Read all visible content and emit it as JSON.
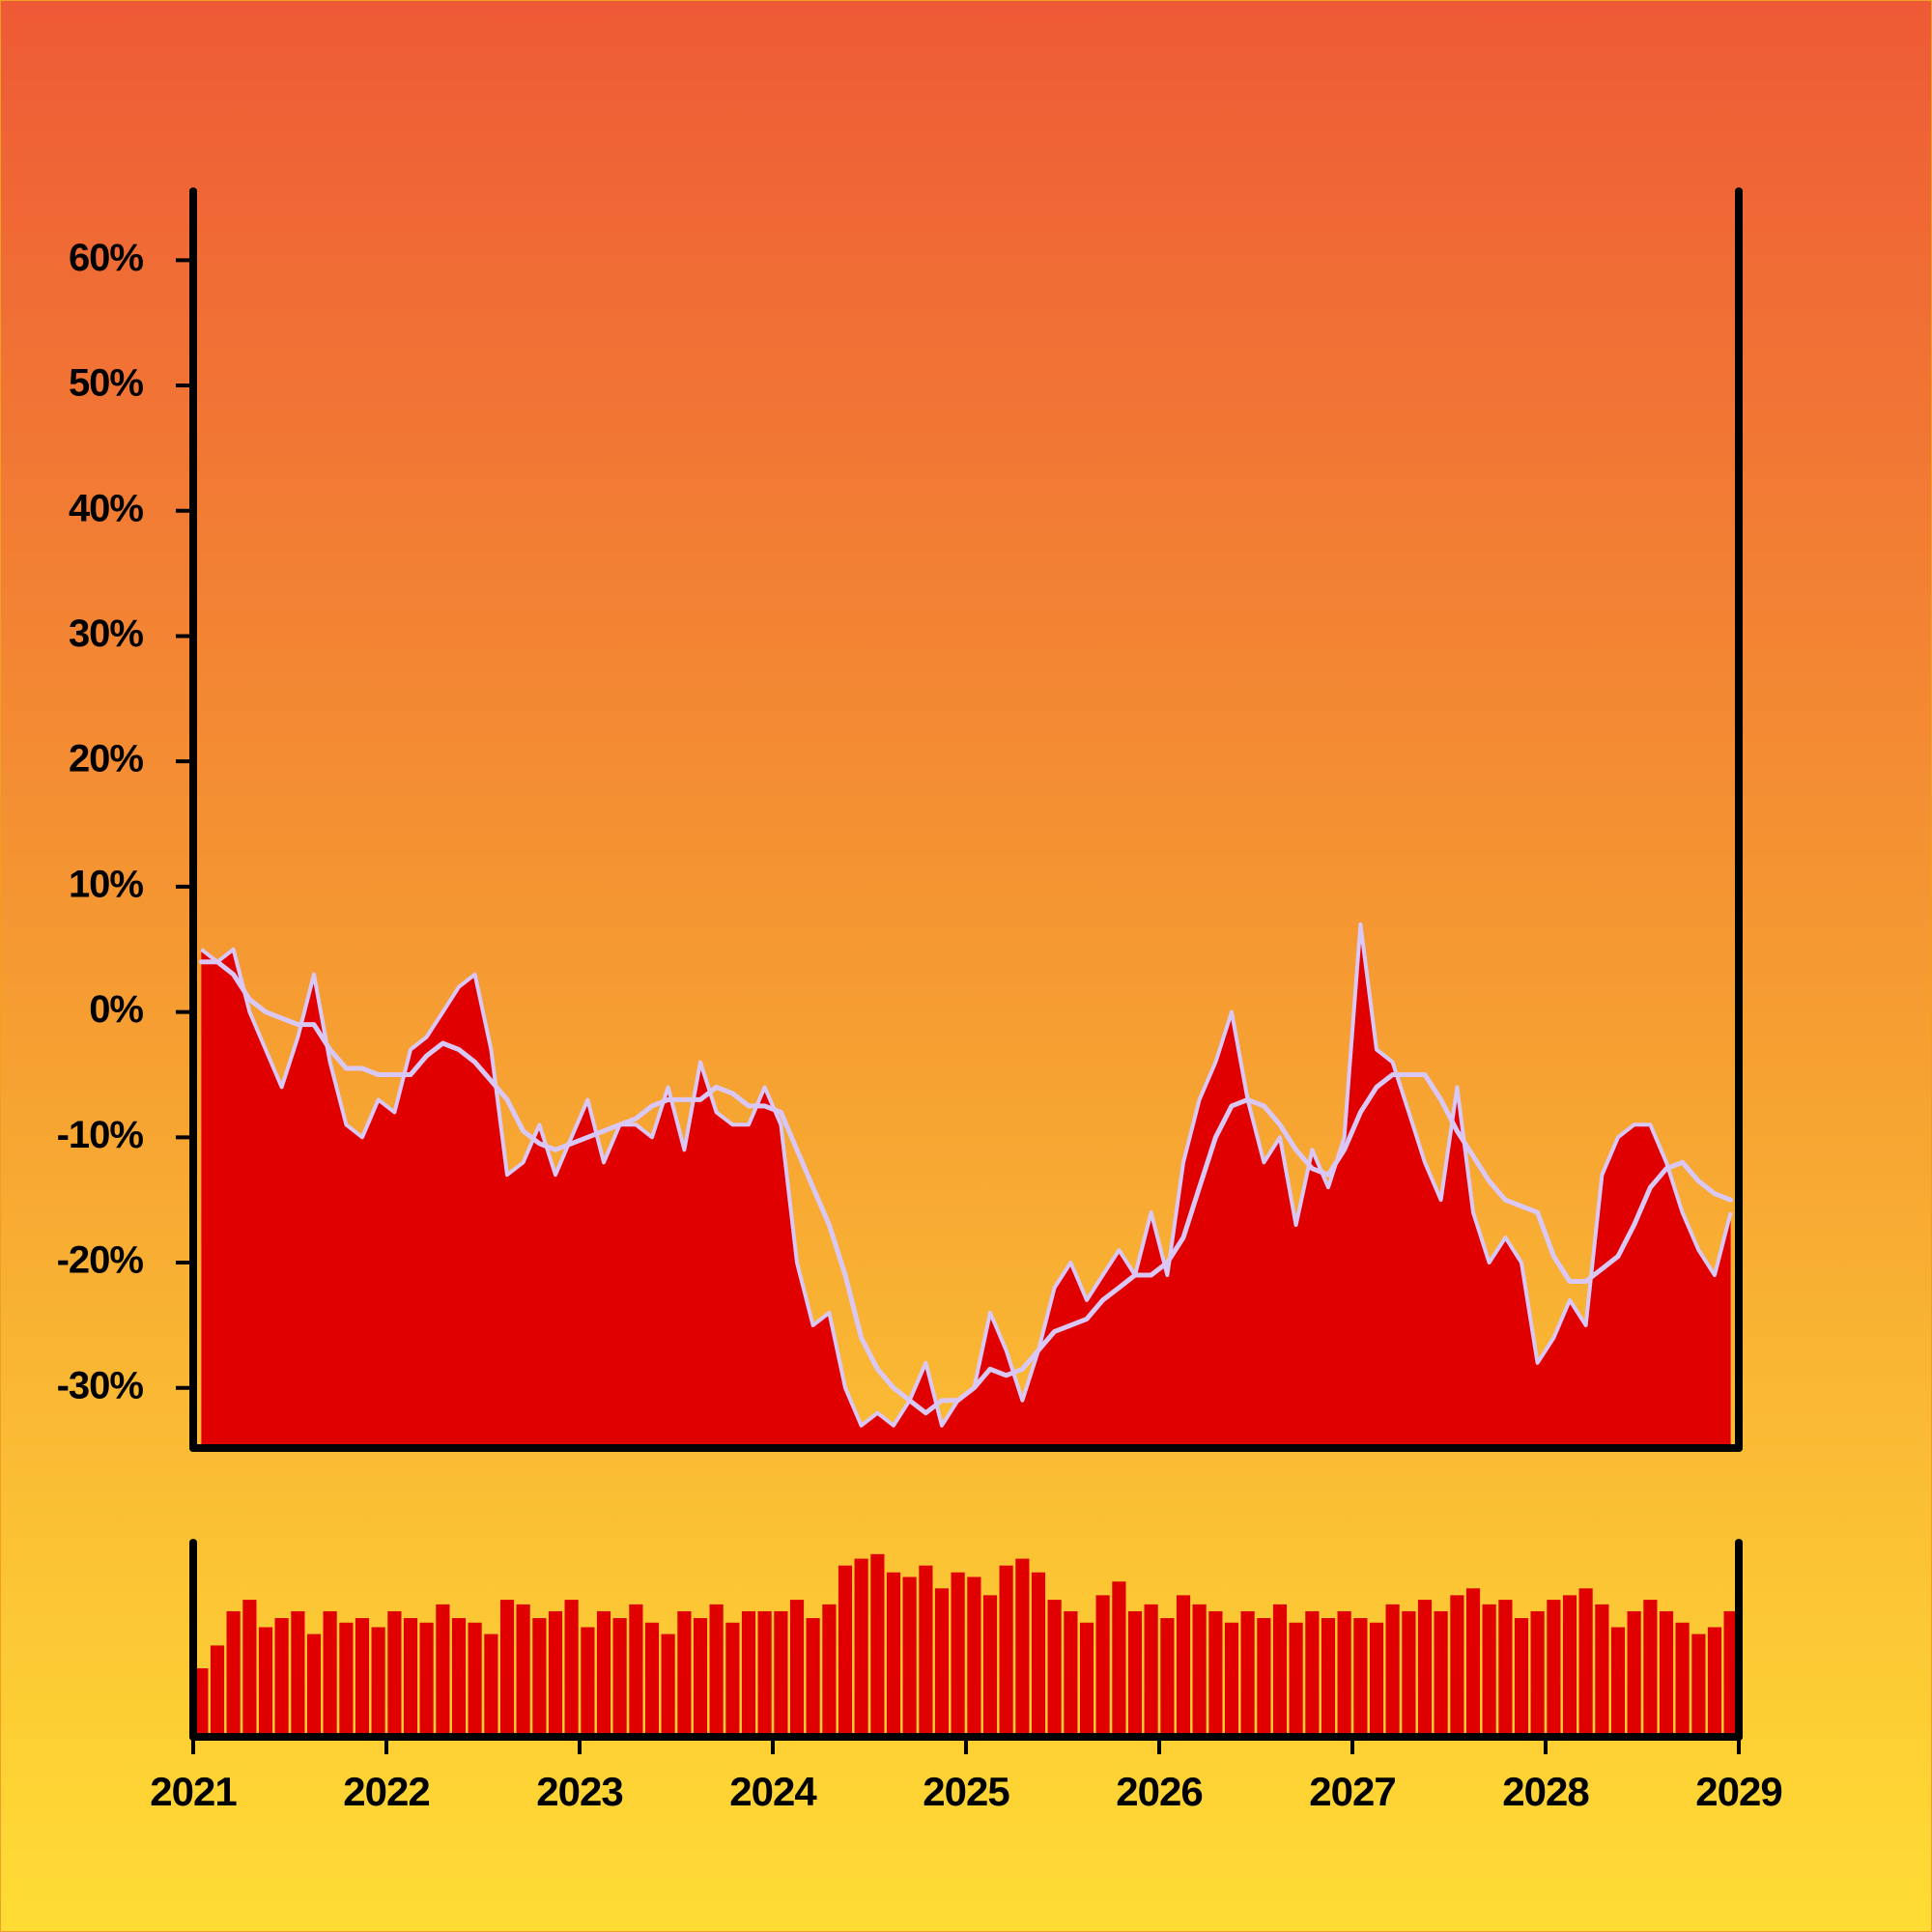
{
  "chart_data": [
    {
      "type": "area",
      "x": [
        2021.042,
        2021.125,
        2021.208,
        2021.292,
        2021.375,
        2021.458,
        2021.542,
        2021.625,
        2021.708,
        2021.792,
        2021.875,
        2021.958,
        2022.042,
        2022.125,
        2022.208,
        2022.292,
        2022.375,
        2022.458,
        2022.542,
        2022.625,
        2022.708,
        2022.792,
        2022.875,
        2022.958,
        2023.042,
        2023.125,
        2023.208,
        2023.292,
        2023.375,
        2023.458,
        2023.542,
        2023.625,
        2023.708,
        2023.792,
        2023.875,
        2023.958,
        2024.042,
        2024.125,
        2024.208,
        2024.292,
        2024.375,
        2024.458,
        2024.542,
        2024.625,
        2024.708,
        2024.792,
        2024.875,
        2024.958,
        2025.042,
        2025.125,
        2025.208,
        2025.292,
        2025.375,
        2025.458,
        2025.542,
        2025.625,
        2025.708,
        2025.792,
        2025.875,
        2025.958,
        2026.042,
        2026.125,
        2026.208,
        2026.292,
        2026.375,
        2026.458,
        2026.542,
        2026.625,
        2026.708,
        2026.792,
        2026.875,
        2026.958,
        2027.042,
        2027.125,
        2027.208,
        2027.292,
        2027.375,
        2027.458,
        2027.542,
        2027.625,
        2027.708,
        2027.792,
        2027.875,
        2027.958,
        2028.042,
        2028.125,
        2028.208,
        2028.292,
        2028.375,
        2028.458,
        2028.542,
        2028.625,
        2028.708,
        2028.792,
        2028.875,
        2028.958
      ],
      "series": [
        {
          "type": "area",
          "color": "#e00000",
          "line_color": "#d9c8f5",
          "values": [
            5,
            4,
            5,
            0,
            -3,
            -6,
            -2,
            3,
            -4,
            -9,
            -10,
            -7,
            -8,
            -3,
            -2,
            0,
            2,
            3,
            -3,
            -13,
            -12,
            -9,
            -13,
            -10,
            -7,
            -12,
            -9,
            -9,
            -10,
            -6,
            -11,
            -4,
            -8,
            -9,
            -9,
            -6,
            -9,
            -20,
            -25,
            -24,
            -30,
            -33,
            -32,
            -33,
            -31,
            -28,
            -33,
            -31,
            -30,
            -24,
            -27,
            -31,
            -27,
            -22,
            -20,
            -23,
            -21,
            -19,
            -21,
            -16,
            -21,
            -12,
            -7,
            -4,
            0,
            -7,
            -12,
            -10,
            -17,
            -11,
            -14,
            -10,
            7,
            -3,
            -4,
            -8,
            -12,
            -15,
            -6,
            -16,
            -20,
            -18,
            -20,
            -28,
            -26,
            -23,
            -25,
            -13,
            -10,
            -9,
            -9,
            -12,
            -16,
            -19,
            -21,
            -16
          ]
        },
        {
          "type": "line",
          "color": "#d9c8f5",
          "values": [
            4,
            4,
            3,
            1,
            0,
            -0.5,
            -1,
            -1,
            -3,
            -4.5,
            -4.5,
            -5,
            -5,
            -5,
            -3.5,
            -2.5,
            -3,
            -4,
            -5.5,
            -7,
            -9.5,
            -10.5,
            -11,
            -10.5,
            -10,
            -9.5,
            -9,
            -8.5,
            -7.5,
            -7,
            -7,
            -7,
            -6,
            -6.5,
            -7.5,
            -7.5,
            -8,
            -11,
            -14,
            -17,
            -21,
            -26,
            -28.5,
            -30,
            -31,
            -32,
            -31,
            -31,
            -30,
            -28.5,
            -29,
            -28.5,
            -27,
            -25.5,
            -25,
            -24.5,
            -23,
            -22,
            -21,
            -21,
            -20,
            -18,
            -14,
            -10,
            -7.5,
            -7,
            -7.5,
            -9,
            -11,
            -12.5,
            -13,
            -11,
            -8,
            -6,
            -5,
            -5,
            -5,
            -7,
            -9.5,
            -11.5,
            -13.5,
            -15,
            -15.5,
            -16,
            -19.5,
            -21.5,
            -21.5,
            -20.5,
            -19.5,
            -17,
            -14,
            -12.5,
            -12,
            -13.5,
            -14.5,
            -15
          ]
        }
      ],
      "xlim": [
        2021,
        2029
      ],
      "ylim": [
        -34.8,
        65.5
      ],
      "yticks": [
        {
          "value": -30,
          "label": "-30%"
        },
        {
          "value": -20,
          "label": "-20%"
        },
        {
          "value": -10,
          "label": "-10%"
        },
        {
          "value": 0,
          "label": "0%"
        },
        {
          "value": 10,
          "label": "10%"
        },
        {
          "value": 20,
          "label": "20%"
        },
        {
          "value": 30,
          "label": "30%"
        },
        {
          "value": 40,
          "label": "40%"
        },
        {
          "value": 50,
          "label": "50%"
        },
        {
          "value": 60,
          "label": "60%"
        }
      ]
    },
    {
      "type": "bar",
      "x": [
        2021.042,
        2021.125,
        2021.208,
        2021.292,
        2021.375,
        2021.458,
        2021.542,
        2021.625,
        2021.708,
        2021.792,
        2021.875,
        2021.958,
        2022.042,
        2022.125,
        2022.208,
        2022.292,
        2022.375,
        2022.458,
        2022.542,
        2022.625,
        2022.708,
        2022.792,
        2022.875,
        2022.958,
        2023.042,
        2023.125,
        2023.208,
        2023.292,
        2023.375,
        2023.458,
        2023.542,
        2023.625,
        2023.708,
        2023.792,
        2023.875,
        2023.958,
        2024.042,
        2024.125,
        2024.208,
        2024.292,
        2024.375,
        2024.458,
        2024.542,
        2024.625,
        2024.708,
        2024.792,
        2024.875,
        2024.958,
        2025.042,
        2025.125,
        2025.208,
        2025.292,
        2025.375,
        2025.458,
        2025.542,
        2025.625,
        2025.708,
        2025.792,
        2025.875,
        2025.958,
        2026.042,
        2026.125,
        2026.208,
        2026.292,
        2026.375,
        2026.458,
        2026.542,
        2026.625,
        2026.708,
        2026.792,
        2026.875,
        2026.958,
        2027.042,
        2027.125,
        2027.208,
        2027.292,
        2027.375,
        2027.458,
        2027.542,
        2027.625,
        2027.708,
        2027.792,
        2027.875,
        2027.958,
        2028.042,
        2028.125,
        2028.208,
        2028.292,
        2028.375,
        2028.458,
        2028.542,
        2028.625,
        2028.708,
        2028.792,
        2028.875,
        2028.958
      ],
      "color": "#e00000",
      "values": [
        30,
        40,
        55,
        60,
        48,
        52,
        55,
        45,
        55,
        50,
        52,
        48,
        55,
        52,
        50,
        58,
        52,
        50,
        45,
        60,
        58,
        52,
        55,
        60,
        48,
        55,
        52,
        58,
        50,
        45,
        55,
        52,
        58,
        50,
        55,
        55,
        55,
        60,
        52,
        58,
        75,
        78,
        80,
        72,
        70,
        75,
        65,
        72,
        70,
        62,
        75,
        78,
        72,
        60,
        55,
        50,
        62,
        68,
        55,
        58,
        52,
        62,
        58,
        55,
        50,
        55,
        52,
        58,
        50,
        55,
        52,
        55,
        52,
        50,
        58,
        55,
        60,
        55,
        62,
        65,
        58,
        60,
        52,
        55,
        60,
        62,
        65,
        58,
        48,
        55,
        60,
        55,
        50,
        45,
        48,
        55
      ],
      "xlim": [
        2021,
        2029
      ],
      "ylim": [
        0,
        85
      ],
      "xticks": [
        2021,
        2022,
        2023,
        2024,
        2025,
        2026,
        2027,
        2028,
        2029
      ]
    }
  ]
}
